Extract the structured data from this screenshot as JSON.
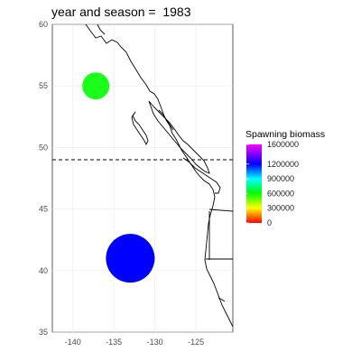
{
  "title": "year and season =  1983",
  "map": {
    "lon_range": [
      -142.5,
      -120.5
    ],
    "lat_range": [
      35,
      60
    ],
    "x_ticks": [
      -140,
      -135,
      -130,
      -125
    ],
    "y_ticks": [
      35,
      40,
      45,
      50,
      55,
      60
    ],
    "dashed_line_lat": 49,
    "points": [
      {
        "lon": -137.2,
        "lat": 55.0,
        "biomass": 700000,
        "color": "#1aff1a"
      },
      {
        "lon": -133.0,
        "lat": 41.0,
        "biomass": 1200000,
        "color": "#0000ff"
      }
    ]
  },
  "legend": {
    "title": "Spawning biomass",
    "labels": [
      "1600000",
      "1200000",
      "900000",
      "600000",
      "300000",
      "0"
    ],
    "values": [
      1600000,
      1200000,
      900000,
      600000,
      300000,
      0
    ],
    "colors": [
      "#ff00ff",
      "#0000ff",
      "#00ffff",
      "#00ff00",
      "#ffff00",
      "#ff0000"
    ]
  }
}
